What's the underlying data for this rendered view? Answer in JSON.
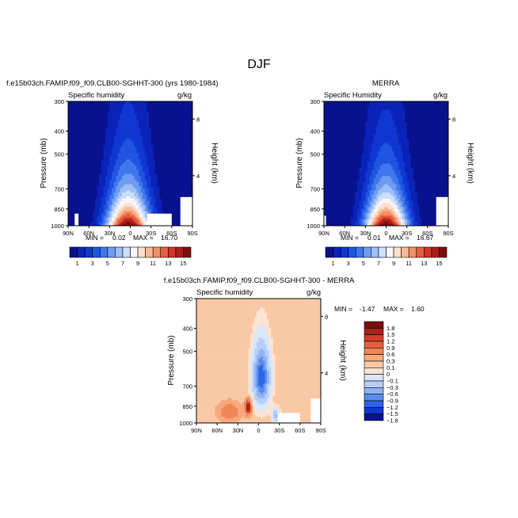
{
  "figure": {
    "title": "DJF"
  },
  "colors": {
    "contour_scale": [
      "#08128f",
      "#0a23b8",
      "#1037d2",
      "#1f55e1",
      "#3f78ec",
      "#6e9cf2",
      "#9fbff6",
      "#cddff9",
      "#f6f7fb",
      "#fde0cc",
      "#f9b996",
      "#f28f67",
      "#e5603f",
      "#d2352a",
      "#ad1d1b",
      "#7c0e0e"
    ],
    "diff_scale": [
      "#08128f",
      "#1037d2",
      "#2f63e7",
      "#5b8cee",
      "#8eb2f4",
      "#b7cff8",
      "#d9e6fb",
      "#fbe4d3",
      "#f9c9a6",
      "#f5a97d",
      "#ef8658",
      "#e5603f",
      "#d53b2c",
      "#b41e1c",
      "#7c0e0e"
    ]
  },
  "chart_data": [
    {
      "type": "heatmap",
      "panel": "model",
      "header": "f.e15b03ch.FAMIP.f09_f09.CLB00-SGHHT-300 (yrs 1980-1984)",
      "subtitle_left": "Specific humidity",
      "subtitle_right": "g/kg",
      "ylabel": "Pressure (mb)",
      "ylabel_right": "Height (km)",
      "x_ticks": [
        "90N",
        "60N",
        "30N",
        "0",
        "30S",
        "60S",
        "90S"
      ],
      "y_ticks": [
        "300",
        "400",
        "500",
        "700",
        "850",
        "1000"
      ],
      "y_ticks_right": [
        "8",
        "4"
      ],
      "xlim": [
        90,
        -90
      ],
      "ylim": [
        1000,
        300
      ],
      "min_label": "MIN =",
      "min_value": "0.02",
      "max_label": "MAX =",
      "max_value": "16.70",
      "min": 0.02,
      "max": 16.7,
      "peak_lat": 3,
      "peak_width": 32,
      "scale_height": 330
    },
    {
      "type": "heatmap",
      "panel": "obs",
      "header": "MERRA",
      "subtitle_left": "Specific Humidity",
      "subtitle_right": "g/kg",
      "ylabel": "Pressure (mb)",
      "ylabel_right": "Height (km)",
      "x_ticks": [
        "90N",
        "60N",
        "30N",
        "0",
        "30S",
        "60S",
        "90S"
      ],
      "y_ticks": [
        "300",
        "400",
        "500",
        "700",
        "850",
        "1000"
      ],
      "y_ticks_right": [
        "8",
        "4"
      ],
      "xlim": [
        90,
        -90
      ],
      "ylim": [
        1000,
        300
      ],
      "min_label": "MIN =",
      "min_value": "0.01",
      "max_label": "MAX =",
      "max_value": "16.67",
      "min": 0.01,
      "max": 16.67,
      "peak_lat": 0,
      "peak_width": 31,
      "scale_height": 320
    },
    {
      "type": "heatmap",
      "panel": "difference",
      "header": "f.e15b03ch.FAMIP.f09_f09.CLB00-SGHHT-300 - MERRA",
      "subtitle_left": "Specific humidity",
      "subtitle_right": "g/kg",
      "ylabel": "Pressure (mb)",
      "ylabel_right": "Height (km)",
      "x_ticks": [
        "90N",
        "60N",
        "30N",
        "0",
        "30S",
        "60S",
        "90S"
      ],
      "y_ticks": [
        "300",
        "400",
        "500",
        "700",
        "850",
        "1000"
      ],
      "y_ticks_right": [
        "8",
        "4"
      ],
      "xlim": [
        90,
        -90
      ],
      "ylim": [
        1000,
        300
      ],
      "min_label": "MIN =",
      "min_value": "-1.47",
      "max_label": "MAX =",
      "max_value": "1.60",
      "min": -1.47,
      "max": 1.6
    }
  ],
  "colorbar_main": {
    "labels": [
      "1",
      "3",
      "5",
      "7",
      "9",
      "11",
      "13",
      "15"
    ],
    "levels": [
      1,
      2,
      3,
      4,
      5,
      6,
      7,
      8,
      9,
      10,
      11,
      12,
      13,
      14,
      15
    ]
  },
  "colorbar_diff": {
    "labels": [
      "1.8",
      "1.5",
      "1.2",
      "0.9",
      "0.6",
      "0.3",
      "0.1",
      "0",
      "−0.1",
      "−0.3",
      "−0.6",
      "−0.9",
      "−1.2",
      "−1.5",
      "−1.8"
    ],
    "levels": [
      -1.8,
      -1.5,
      -1.2,
      -0.9,
      -0.6,
      -0.3,
      -0.1,
      0,
      0.1,
      0.3,
      0.6,
      0.9,
      1.2,
      1.5,
      1.8
    ]
  }
}
